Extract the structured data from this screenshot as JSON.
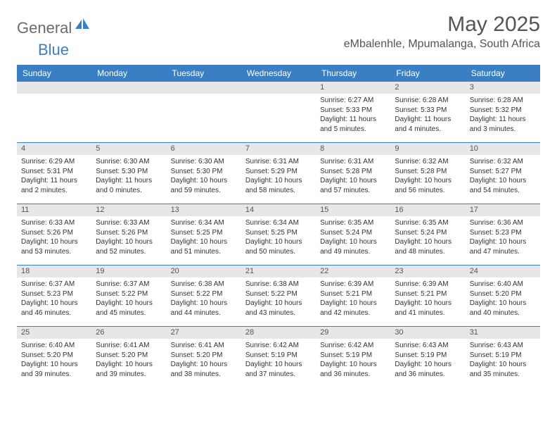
{
  "brand": {
    "name1": "General",
    "name2": "Blue"
  },
  "title": "May 2025",
  "location": "eMbalenhle, Mpumalanga, South Africa",
  "colors": {
    "header_bg": "#3a7fc4",
    "header_text": "#ffffff",
    "daynum_bg": "#e7e7e7",
    "week_border": "#3a7fc4",
    "body_text": "#333333",
    "title_text": "#555555",
    "logo_gray": "#6b6b6b",
    "logo_blue": "#3a7fc4",
    "background": "#ffffff"
  },
  "layout": {
    "columns": 7,
    "rows": 5,
    "day_fontsize": 10,
    "daynum_fontsize": 11,
    "header_fontsize": 12,
    "title_fontsize": 30,
    "location_fontsize": 16
  },
  "weekdays": [
    "Sunday",
    "Monday",
    "Tuesday",
    "Wednesday",
    "Thursday",
    "Friday",
    "Saturday"
  ],
  "weeks": [
    [
      {
        "n": "",
        "sr": "",
        "ss": "",
        "dl": ""
      },
      {
        "n": "",
        "sr": "",
        "ss": "",
        "dl": ""
      },
      {
        "n": "",
        "sr": "",
        "ss": "",
        "dl": ""
      },
      {
        "n": "",
        "sr": "",
        "ss": "",
        "dl": ""
      },
      {
        "n": "1",
        "sr": "Sunrise: 6:27 AM",
        "ss": "Sunset: 5:33 PM",
        "dl": "Daylight: 11 hours and 5 minutes."
      },
      {
        "n": "2",
        "sr": "Sunrise: 6:28 AM",
        "ss": "Sunset: 5:33 PM",
        "dl": "Daylight: 11 hours and 4 minutes."
      },
      {
        "n": "3",
        "sr": "Sunrise: 6:28 AM",
        "ss": "Sunset: 5:32 PM",
        "dl": "Daylight: 11 hours and 3 minutes."
      }
    ],
    [
      {
        "n": "4",
        "sr": "Sunrise: 6:29 AM",
        "ss": "Sunset: 5:31 PM",
        "dl": "Daylight: 11 hours and 2 minutes."
      },
      {
        "n": "5",
        "sr": "Sunrise: 6:30 AM",
        "ss": "Sunset: 5:30 PM",
        "dl": "Daylight: 11 hours and 0 minutes."
      },
      {
        "n": "6",
        "sr": "Sunrise: 6:30 AM",
        "ss": "Sunset: 5:30 PM",
        "dl": "Daylight: 10 hours and 59 minutes."
      },
      {
        "n": "7",
        "sr": "Sunrise: 6:31 AM",
        "ss": "Sunset: 5:29 PM",
        "dl": "Daylight: 10 hours and 58 minutes."
      },
      {
        "n": "8",
        "sr": "Sunrise: 6:31 AM",
        "ss": "Sunset: 5:28 PM",
        "dl": "Daylight: 10 hours and 57 minutes."
      },
      {
        "n": "9",
        "sr": "Sunrise: 6:32 AM",
        "ss": "Sunset: 5:28 PM",
        "dl": "Daylight: 10 hours and 56 minutes."
      },
      {
        "n": "10",
        "sr": "Sunrise: 6:32 AM",
        "ss": "Sunset: 5:27 PM",
        "dl": "Daylight: 10 hours and 54 minutes."
      }
    ],
    [
      {
        "n": "11",
        "sr": "Sunrise: 6:33 AM",
        "ss": "Sunset: 5:26 PM",
        "dl": "Daylight: 10 hours and 53 minutes."
      },
      {
        "n": "12",
        "sr": "Sunrise: 6:33 AM",
        "ss": "Sunset: 5:26 PM",
        "dl": "Daylight: 10 hours and 52 minutes."
      },
      {
        "n": "13",
        "sr": "Sunrise: 6:34 AM",
        "ss": "Sunset: 5:25 PM",
        "dl": "Daylight: 10 hours and 51 minutes."
      },
      {
        "n": "14",
        "sr": "Sunrise: 6:34 AM",
        "ss": "Sunset: 5:25 PM",
        "dl": "Daylight: 10 hours and 50 minutes."
      },
      {
        "n": "15",
        "sr": "Sunrise: 6:35 AM",
        "ss": "Sunset: 5:24 PM",
        "dl": "Daylight: 10 hours and 49 minutes."
      },
      {
        "n": "16",
        "sr": "Sunrise: 6:35 AM",
        "ss": "Sunset: 5:24 PM",
        "dl": "Daylight: 10 hours and 48 minutes."
      },
      {
        "n": "17",
        "sr": "Sunrise: 6:36 AM",
        "ss": "Sunset: 5:23 PM",
        "dl": "Daylight: 10 hours and 47 minutes."
      }
    ],
    [
      {
        "n": "18",
        "sr": "Sunrise: 6:37 AM",
        "ss": "Sunset: 5:23 PM",
        "dl": "Daylight: 10 hours and 46 minutes."
      },
      {
        "n": "19",
        "sr": "Sunrise: 6:37 AM",
        "ss": "Sunset: 5:22 PM",
        "dl": "Daylight: 10 hours and 45 minutes."
      },
      {
        "n": "20",
        "sr": "Sunrise: 6:38 AM",
        "ss": "Sunset: 5:22 PM",
        "dl": "Daylight: 10 hours and 44 minutes."
      },
      {
        "n": "21",
        "sr": "Sunrise: 6:38 AM",
        "ss": "Sunset: 5:22 PM",
        "dl": "Daylight: 10 hours and 43 minutes."
      },
      {
        "n": "22",
        "sr": "Sunrise: 6:39 AM",
        "ss": "Sunset: 5:21 PM",
        "dl": "Daylight: 10 hours and 42 minutes."
      },
      {
        "n": "23",
        "sr": "Sunrise: 6:39 AM",
        "ss": "Sunset: 5:21 PM",
        "dl": "Daylight: 10 hours and 41 minutes."
      },
      {
        "n": "24",
        "sr": "Sunrise: 6:40 AM",
        "ss": "Sunset: 5:20 PM",
        "dl": "Daylight: 10 hours and 40 minutes."
      }
    ],
    [
      {
        "n": "25",
        "sr": "Sunrise: 6:40 AM",
        "ss": "Sunset: 5:20 PM",
        "dl": "Daylight: 10 hours and 39 minutes."
      },
      {
        "n": "26",
        "sr": "Sunrise: 6:41 AM",
        "ss": "Sunset: 5:20 PM",
        "dl": "Daylight: 10 hours and 39 minutes."
      },
      {
        "n": "27",
        "sr": "Sunrise: 6:41 AM",
        "ss": "Sunset: 5:20 PM",
        "dl": "Daylight: 10 hours and 38 minutes."
      },
      {
        "n": "28",
        "sr": "Sunrise: 6:42 AM",
        "ss": "Sunset: 5:19 PM",
        "dl": "Daylight: 10 hours and 37 minutes."
      },
      {
        "n": "29",
        "sr": "Sunrise: 6:42 AM",
        "ss": "Sunset: 5:19 PM",
        "dl": "Daylight: 10 hours and 36 minutes."
      },
      {
        "n": "30",
        "sr": "Sunrise: 6:43 AM",
        "ss": "Sunset: 5:19 PM",
        "dl": "Daylight: 10 hours and 36 minutes."
      },
      {
        "n": "31",
        "sr": "Sunrise: 6:43 AM",
        "ss": "Sunset: 5:19 PM",
        "dl": "Daylight: 10 hours and 35 minutes."
      }
    ]
  ]
}
